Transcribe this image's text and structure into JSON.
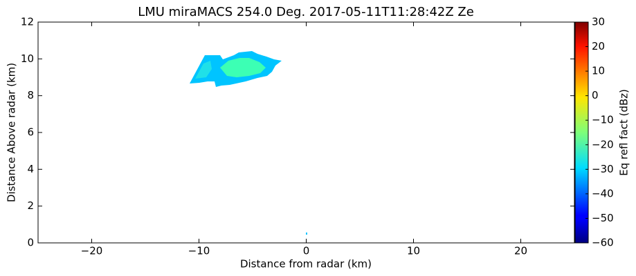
{
  "chart_data": {
    "type": "radar-rhi",
    "title": "LMU miraMACS 254.0 Deg. 2017-05-11T11:28:42Z  Ze",
    "xlabel": "Distance from radar (km)",
    "ylabel": "Distance Above radar  (km)",
    "xlim": [
      -25,
      25
    ],
    "xticks": [
      {
        "value": -20,
        "label": "−20"
      },
      {
        "value": -10,
        "label": "−10"
      },
      0,
      10,
      20
    ],
    "ylim": [
      0,
      12
    ],
    "yticks": [
      0,
      2,
      4,
      6,
      8,
      10,
      12
    ],
    "colorbar": {
      "label": "Eq refl fact (dBz)",
      "colormap": "jet",
      "lim": [
        -60,
        30
      ],
      "ticks": [
        {
          "value": -60,
          "label": "−60"
        },
        {
          "value": -50,
          "label": "−50"
        },
        {
          "value": -40,
          "label": "−40"
        },
        {
          "value": -30,
          "label": "−30"
        },
        {
          "value": -20,
          "label": "−20"
        },
        {
          "value": -10,
          "label": "−10"
        },
        0,
        10,
        20,
        30
      ]
    }
  }
}
